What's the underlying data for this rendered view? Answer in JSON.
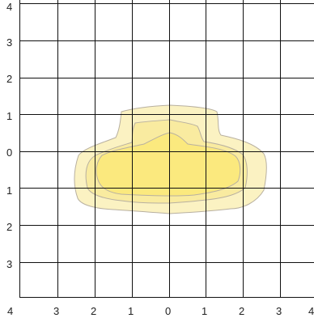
{
  "grid": {
    "x_labels": [
      "4",
      "3",
      "2",
      "1",
      "0",
      "1",
      "2",
      "3",
      "4"
    ],
    "y_labels": [
      "4",
      "3",
      "2",
      "1",
      "0",
      "1",
      "2",
      "3"
    ]
  },
  "contours": [
    {
      "level": "outer",
      "color": "#fbf2c2"
    },
    {
      "level": "middle",
      "color": "#f9eba0"
    },
    {
      "level": "inner",
      "color": "#fbe97e"
    }
  ],
  "colors": {
    "grid": "#111111",
    "contour_stroke": "#b8b0a0"
  }
}
